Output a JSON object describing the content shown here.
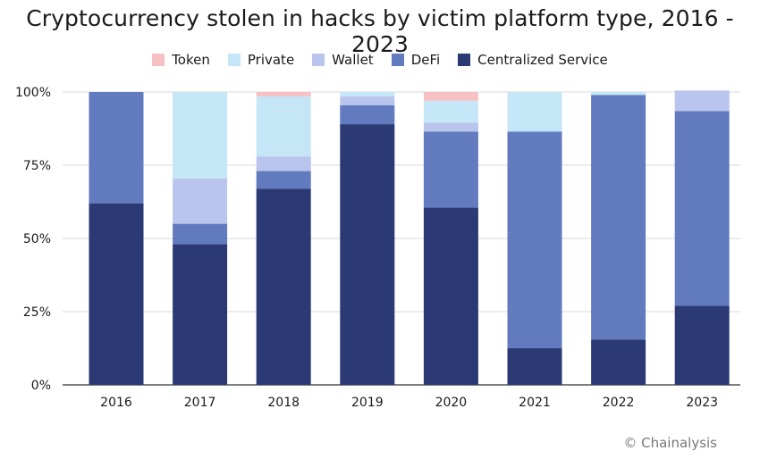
{
  "chart_data": {
    "type": "bar",
    "stacked": true,
    "title": "Cryptocurrency stolen in hacks by victim platform type, 2016 - 2023",
    "categories": [
      "2016",
      "2017",
      "2018",
      "2019",
      "2020",
      "2021",
      "2022",
      "2023"
    ],
    "ylim": [
      0,
      100
    ],
    "yticks": [
      0,
      25,
      50,
      75,
      100
    ],
    "ytick_labels": [
      "0%",
      "25%",
      "50%",
      "75%",
      "100%"
    ],
    "grid": "y",
    "legend_position": "top-center",
    "series": [
      {
        "name": "Centralized Service",
        "color": "#2b3a74",
        "values": [
          62,
          48,
          67,
          89,
          60.5,
          12.5,
          15.5,
          27
        ]
      },
      {
        "name": "DeFi",
        "color": "#627bbf",
        "values": [
          38,
          7,
          6,
          6.5,
          26,
          74,
          83.5,
          66.5
        ]
      },
      {
        "name": "Wallet",
        "color": "#b9c5ec",
        "values": [
          0,
          15.5,
          5,
          3,
          3,
          0,
          0,
          7
        ]
      },
      {
        "name": "Private",
        "color": "#c5e6f7",
        "values": [
          0,
          29.5,
          20.5,
          1.5,
          7.5,
          13.5,
          1,
          0
        ]
      },
      {
        "name": "Token",
        "color": "#f7c1c4",
        "values": [
          0,
          0,
          1.5,
          0,
          3,
          0,
          0,
          0
        ]
      }
    ],
    "legend_order": [
      "Token",
      "Private",
      "Wallet",
      "DeFi",
      "Centralized Service"
    ]
  },
  "credit": "© Chainalysis"
}
